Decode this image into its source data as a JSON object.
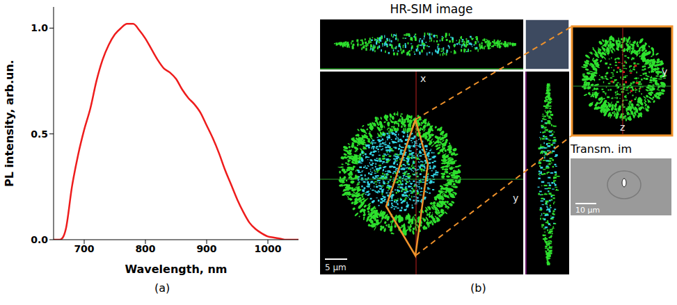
{
  "chart_data": {
    "type": "line",
    "xlabel": "Wavelength, nm",
    "ylabel": "PL intensity, arb.un.",
    "x": [
      650,
      660,
      665,
      670,
      680,
      690,
      700,
      710,
      720,
      730,
      740,
      750,
      760,
      770,
      780,
      790,
      800,
      810,
      820,
      830,
      840,
      850,
      860,
      870,
      880,
      890,
      900,
      910,
      920,
      930,
      940,
      950,
      960,
      970,
      980,
      990,
      1000,
      1010,
      1020,
      1030,
      1040,
      1050
    ],
    "values": [
      0,
      0,
      0.01,
      0.05,
      0.25,
      0.4,
      0.52,
      0.62,
      0.75,
      0.85,
      0.92,
      0.97,
      1.0,
      1.02,
      1.02,
      0.99,
      0.95,
      0.9,
      0.85,
      0.81,
      0.79,
      0.76,
      0.71,
      0.67,
      0.64,
      0.6,
      0.54,
      0.48,
      0.41,
      0.33,
      0.26,
      0.19,
      0.13,
      0.08,
      0.05,
      0.03,
      0.015,
      0.01,
      0.005,
      0,
      0,
      0
    ],
    "color": "#ee1c1c",
    "xlim": [
      650,
      1050
    ],
    "xticks": [
      700,
      800,
      900,
      1000
    ],
    "ylim": [
      0,
      1.1
    ],
    "yticks": [
      {
        "value": 0,
        "label": "0.0"
      },
      {
        "value": 0.5,
        "label": "0.5"
      },
      {
        "value": 1,
        "label": "1.0"
      }
    ],
    "grid": false
  },
  "panel_labels": [
    "(a)",
    "(b)"
  ],
  "microscopy": {
    "title": "HR-SIM image",
    "main": {
      "axis_labels": [
        "x",
        "y"
      ],
      "scale_bar": "5 µm"
    },
    "zoom": {
      "axis_labels": [
        "y",
        "z"
      ]
    },
    "transmission": {
      "title": "Transm. im",
      "scale_bar": "10 µm"
    }
  }
}
